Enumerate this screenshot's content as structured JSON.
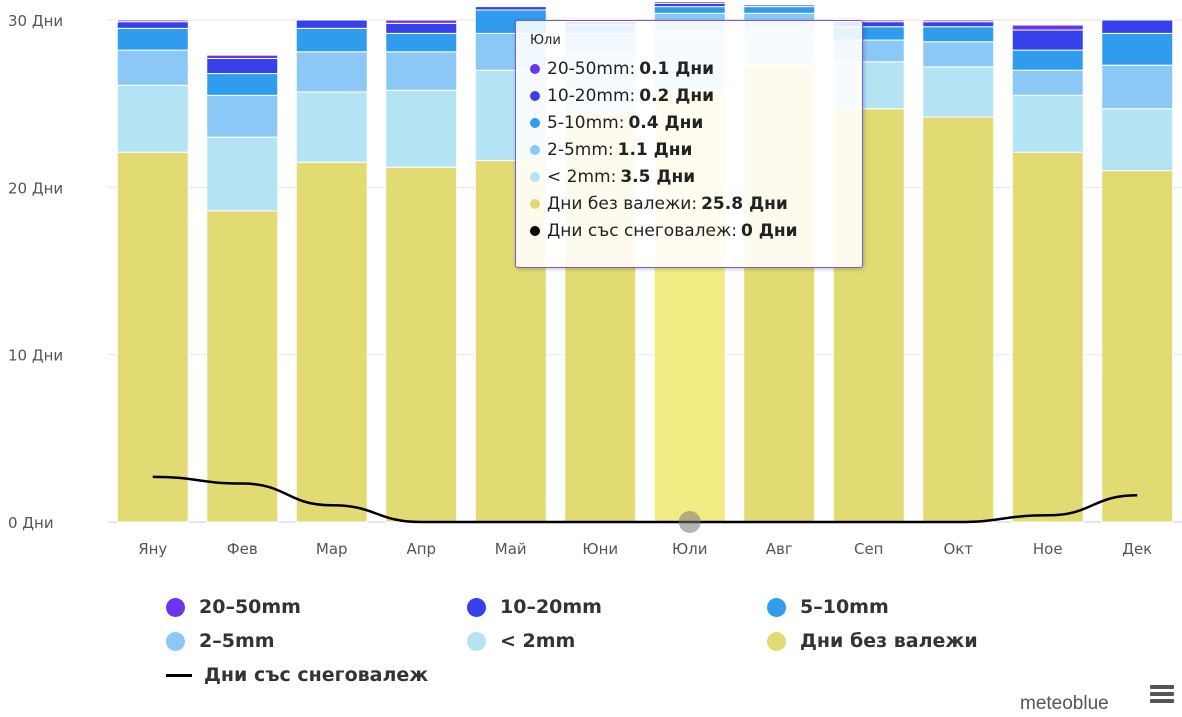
{
  "chart_data": {
    "type": "bar",
    "stacked": true,
    "categories": [
      "Яну",
      "Фев",
      "Мар",
      "Апр",
      "Май",
      "Юни",
      "Юли",
      "Авг",
      "Сеп",
      "Окт",
      "Ное",
      "Дек"
    ],
    "y_unit": "Дни",
    "ylim": [
      0,
      30
    ],
    "yticks": [
      "0 Дни",
      "10 Дни",
      "20 Дни",
      "30 Дни"
    ],
    "series": [
      {
        "name": "Дни без валежи",
        "color": "#e2db73",
        "values": [
          22.1,
          18.6,
          21.5,
          21.2,
          21.6,
          24.5,
          25.8,
          27.3,
          24.7,
          24.2,
          22.1,
          21.0
        ]
      },
      {
        "name": "< 2mm",
        "color": "#b4e4f4",
        "values": [
          4.0,
          4.4,
          4.2,
          4.6,
          5.4,
          3.5,
          3.5,
          2.2,
          2.8,
          3.0,
          3.4,
          3.7
        ]
      },
      {
        "name": "2-5mm",
        "color": "#8cc8f5",
        "values": [
          2.1,
          2.5,
          2.4,
          2.3,
          2.2,
          1.2,
          1.1,
          0.9,
          1.3,
          1.5,
          1.5,
          2.6
        ]
      },
      {
        "name": "5-10mm",
        "color": "#2f9cee",
        "values": [
          1.3,
          1.3,
          1.4,
          1.1,
          1.4,
          0.5,
          0.4,
          0.4,
          0.8,
          0.9,
          1.2,
          1.9
        ]
      },
      {
        "name": "10-20mm",
        "color": "#3641eb",
        "values": [
          0.4,
          0.9,
          0.5,
          0.6,
          0.2,
          0.2,
          0.2,
          0.1,
          0.3,
          0.3,
          1.2,
          0.8
        ]
      },
      {
        "name": "20-50mm",
        "color": "#6b35f0",
        "values": [
          0.1,
          0.2,
          0.0,
          0.2,
          0.0,
          0.1,
          0.1,
          0.0,
          0.1,
          0.1,
          0.3,
          0.0
        ]
      }
    ],
    "line_series": {
      "name": "Дни със снеговалеж",
      "color": "#000000",
      "values": [
        2.7,
        2.3,
        1.0,
        0.0,
        0.0,
        0.0,
        0.0,
        0.0,
        0.0,
        0.0,
        0.4,
        1.6
      ]
    },
    "highlighted_category": "Юли",
    "highlight_color": "#f3ec84",
    "grid": true,
    "legend": "bottom"
  },
  "tooltip": {
    "title": "Юли",
    "rows": [
      {
        "label": "20-50mm:",
        "value": "0.1 Дни",
        "color": "#6b35f0"
      },
      {
        "label": "10-20mm:",
        "value": "0.2 Дни",
        "color": "#3641eb"
      },
      {
        "label": "5-10mm:",
        "value": "0.4 Дни",
        "color": "#2f9cee"
      },
      {
        "label": "2-5mm:",
        "value": "1.1 Дни",
        "color": "#8cc8f5"
      },
      {
        "label": "< 2mm:",
        "value": "3.5 Дни",
        "color": "#b4e4f4"
      },
      {
        "label": "Дни без валежи:",
        "value": "25.8 Дни",
        "color": "#e2db73"
      },
      {
        "label": "Дни със снеговалеж:",
        "value": "0 Дни",
        "color": "#000000"
      }
    ]
  },
  "legend": {
    "items": [
      {
        "label": "20–50mm",
        "color": "#6b35f0"
      },
      {
        "label": "10–20mm",
        "color": "#3641eb"
      },
      {
        "label": "5–10mm",
        "color": "#2f9cee"
      },
      {
        "label": "2–5mm",
        "color": "#8cc8f5"
      },
      {
        "label": "< 2mm",
        "color": "#b4e4f4"
      },
      {
        "label": "Дни без валежи",
        "color": "#e2db73"
      },
      {
        "label": "Дни със снеговалеж",
        "color": "#000000"
      }
    ]
  },
  "credits": "meteoblue",
  "menu_icon": "hamburger-menu-icon"
}
